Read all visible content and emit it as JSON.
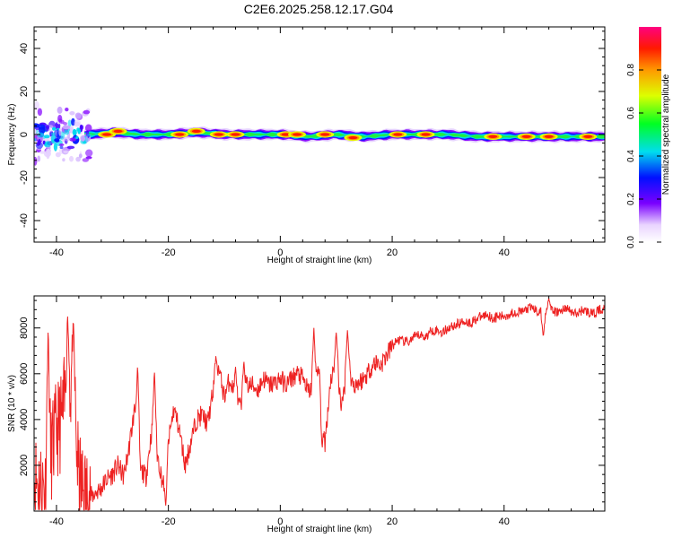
{
  "title": "C2E6.2025.258.12.17.G04",
  "chart_data": [
    {
      "type": "heatmap",
      "xlabel": "Height of straight line (km)",
      "ylabel": "Frequency (Hz)",
      "xlim": [
        -44,
        58
      ],
      "ylim": [
        -50,
        50
      ],
      "xticks": [
        -40,
        -20,
        0,
        20,
        40
      ],
      "yticks": [
        -40,
        -20,
        0,
        20,
        40
      ],
      "colorbar": {
        "label": "Normalized spectral amplitude",
        "range": [
          0,
          1
        ],
        "ticks": [
          0.0,
          0.2,
          0.4,
          0.6,
          0.8
        ],
        "tick_labels": [
          "0.0",
          "0.2",
          "0.4",
          "0.6",
          "0.8"
        ]
      },
      "ridge": {
        "x": [
          -44,
          -40,
          -36,
          -34,
          -30,
          -25,
          -20,
          -15,
          -10,
          -5,
          0,
          5,
          10,
          15,
          20,
          25,
          30,
          35,
          40,
          45,
          50,
          55,
          58
        ],
        "center_hz": [
          0,
          2,
          0,
          0,
          1,
          0,
          0,
          1,
          0,
          0,
          0,
          -1,
          0,
          -1,
          0,
          0,
          0,
          -1,
          -1,
          -1,
          -1,
          -1,
          -1
        ],
        "peaks": [
          {
            "x": -31,
            "f": 0
          },
          {
            "x": -29,
            "f": 1.5
          },
          {
            "x": -18,
            "f": 0
          },
          {
            "x": -15,
            "f": 1.5
          },
          {
            "x": -11,
            "f": 0
          },
          {
            "x": -8,
            "f": 0
          },
          {
            "x": 1,
            "f": 0
          },
          {
            "x": 3,
            "f": 0
          },
          {
            "x": 8,
            "f": 0
          },
          {
            "x": 13,
            "f": -1.5
          },
          {
            "x": 21,
            "f": 0
          },
          {
            "x": 26,
            "f": 0
          },
          {
            "x": 38,
            "f": -1
          },
          {
            "x": 44,
            "f": -1
          },
          {
            "x": 48,
            "f": -1
          },
          {
            "x": 55,
            "f": -1
          }
        ],
        "noisy_region_x": [
          -44,
          -34
        ],
        "noisy_region_hz": [
          -15,
          15
        ]
      }
    },
    {
      "type": "line",
      "xlabel": "Height of straight line (km)",
      "ylabel": "SNR (10 * v/v)",
      "xlim": [
        -44,
        58
      ],
      "ylim": [
        0,
        9400
      ],
      "xticks": [
        -40,
        -20,
        0,
        20,
        40
      ],
      "yticks": [
        2000,
        4000,
        6000,
        8000
      ],
      "color": "#ee2222",
      "x": [
        -44,
        -43,
        -42,
        -41,
        -40,
        -39,
        -38,
        -37,
        -36,
        -35,
        -34,
        -33,
        -32,
        -31,
        -30,
        -29,
        -28,
        -27,
        -26,
        -25,
        -24,
        -23,
        -22,
        -21,
        -20,
        -19,
        -18,
        -17,
        -16,
        -15,
        -14,
        -13,
        -12,
        -11,
        -10,
        -9,
        -8,
        -7,
        -6,
        -5,
        -4,
        -3,
        -2,
        -1,
        0,
        1,
        2,
        3,
        4,
        5,
        6,
        7,
        8,
        9,
        10,
        11,
        12,
        13,
        14,
        15,
        16,
        17,
        18,
        19,
        20,
        21,
        22,
        23,
        24,
        25,
        26,
        27,
        28,
        29,
        30,
        31,
        32,
        33,
        34,
        35,
        36,
        37,
        38,
        39,
        40,
        41,
        42,
        43,
        44,
        45,
        46,
        47,
        48,
        49,
        50,
        51,
        52,
        53,
        54,
        55,
        56,
        57,
        58
      ],
      "y": [
        1500,
        1200,
        1000,
        2500,
        3500,
        4000,
        5500,
        5000,
        1300,
        800,
        600,
        800,
        1000,
        1400,
        1600,
        2000,
        1500,
        2800,
        4500,
        1800,
        1500,
        3500,
        2500,
        1200,
        3000,
        4500,
        3500,
        2000,
        3000,
        4000,
        4200,
        3800,
        5200,
        6200,
        5000,
        5800,
        4800,
        4500,
        5500,
        5500,
        5300,
        5800,
        5500,
        5600,
        5800,
        5500,
        5800,
        6000,
        5800,
        5200,
        5500,
        6200,
        3000,
        5800,
        6400,
        4500,
        6500,
        5500,
        5600,
        5800,
        6200,
        6500,
        6400,
        6800,
        7200,
        7500,
        7400,
        7400,
        7600,
        7700,
        7600,
        7900,
        7900,
        7800,
        8000,
        8100,
        8200,
        8300,
        8200,
        8400,
        8500,
        8600,
        8400,
        8500,
        8500,
        8600,
        8700,
        8700,
        8800,
        8900,
        8700,
        8700,
        8800,
        8700,
        8700,
        8900,
        8700,
        8600,
        8800,
        8700,
        8600,
        8800,
        8800
      ],
      "spikes": [
        {
          "x": -41.5,
          "y": 8100
        },
        {
          "x": -38,
          "y": 8500
        },
        {
          "x": -37,
          "y": 8300
        },
        {
          "x": -25.5,
          "y": 6400
        },
        {
          "x": -22.5,
          "y": 6200
        },
        {
          "x": -20.5,
          "y": 150
        },
        {
          "x": -11.5,
          "y": 6800
        },
        {
          "x": -8,
          "y": 6300
        },
        {
          "x": -6.5,
          "y": 6600
        },
        {
          "x": 6,
          "y": 8000
        },
        {
          "x": 7.5,
          "y": 2700
        },
        {
          "x": 10,
          "y": 7800
        },
        {
          "x": 12,
          "y": 7900
        },
        {
          "x": 47,
          "y": 7600
        },
        {
          "x": 48,
          "y": 9300
        }
      ]
    }
  ]
}
